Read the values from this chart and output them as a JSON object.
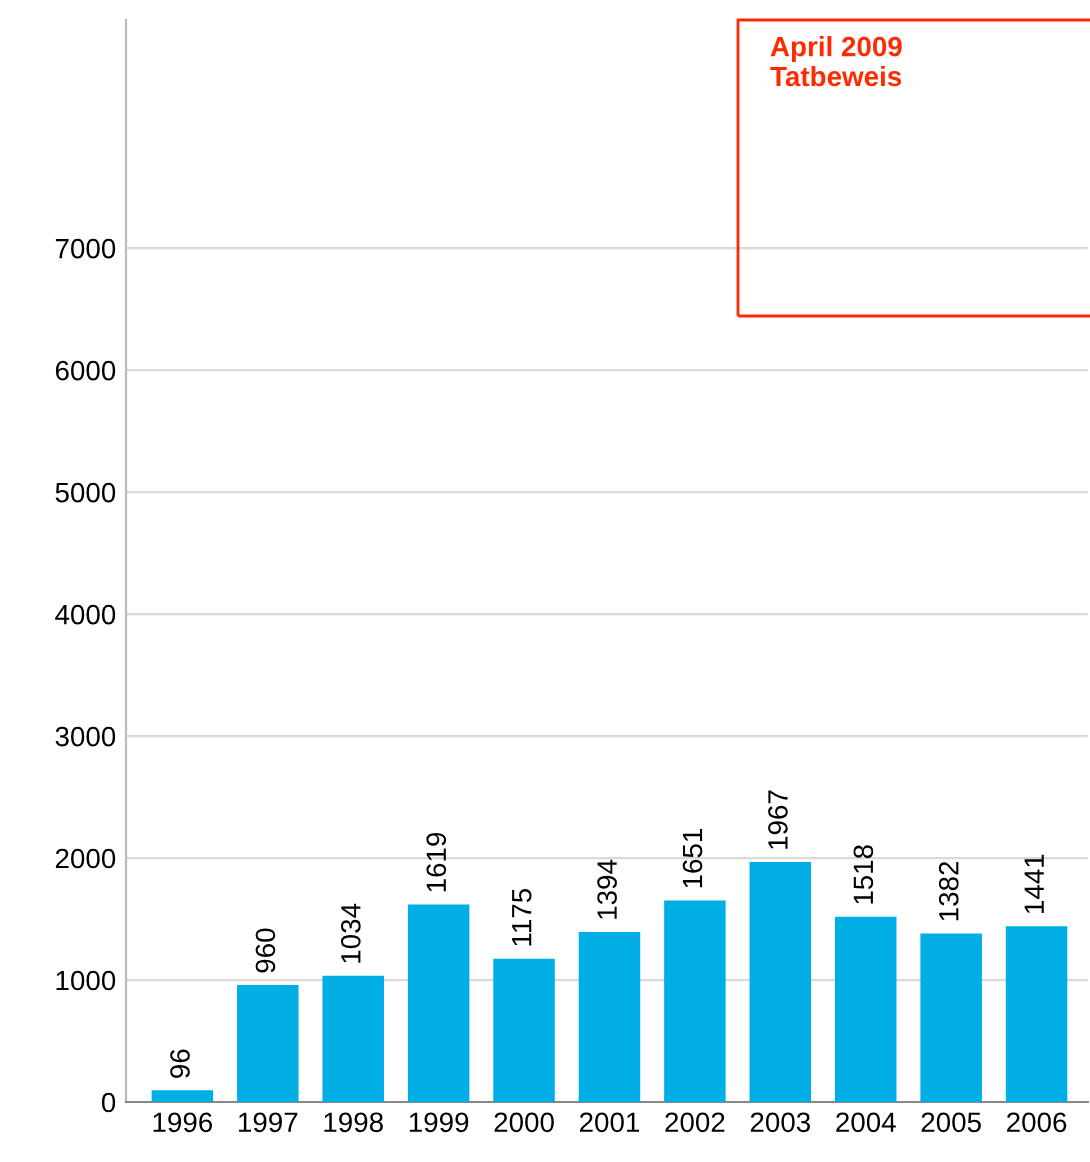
{
  "chart_data": {
    "type": "bar",
    "categories": [
      "1996",
      "1997",
      "1998",
      "1999",
      "2000",
      "2001",
      "2002",
      "2003",
      "2004",
      "2005",
      "2006"
    ],
    "values": [
      96,
      960,
      1034,
      1619,
      1175,
      1394,
      1651,
      1967,
      1518,
      1382,
      1441
    ],
    "color": "#00aee6",
    "data_labels": true,
    "ylim": [
      0,
      8870
    ],
    "yticks": [
      0,
      1000,
      2000,
      3000,
      4000,
      5000,
      6000,
      7000
    ],
    "grid": "y",
    "annotations": [
      "April 2009\nTatbeweis"
    ]
  }
}
